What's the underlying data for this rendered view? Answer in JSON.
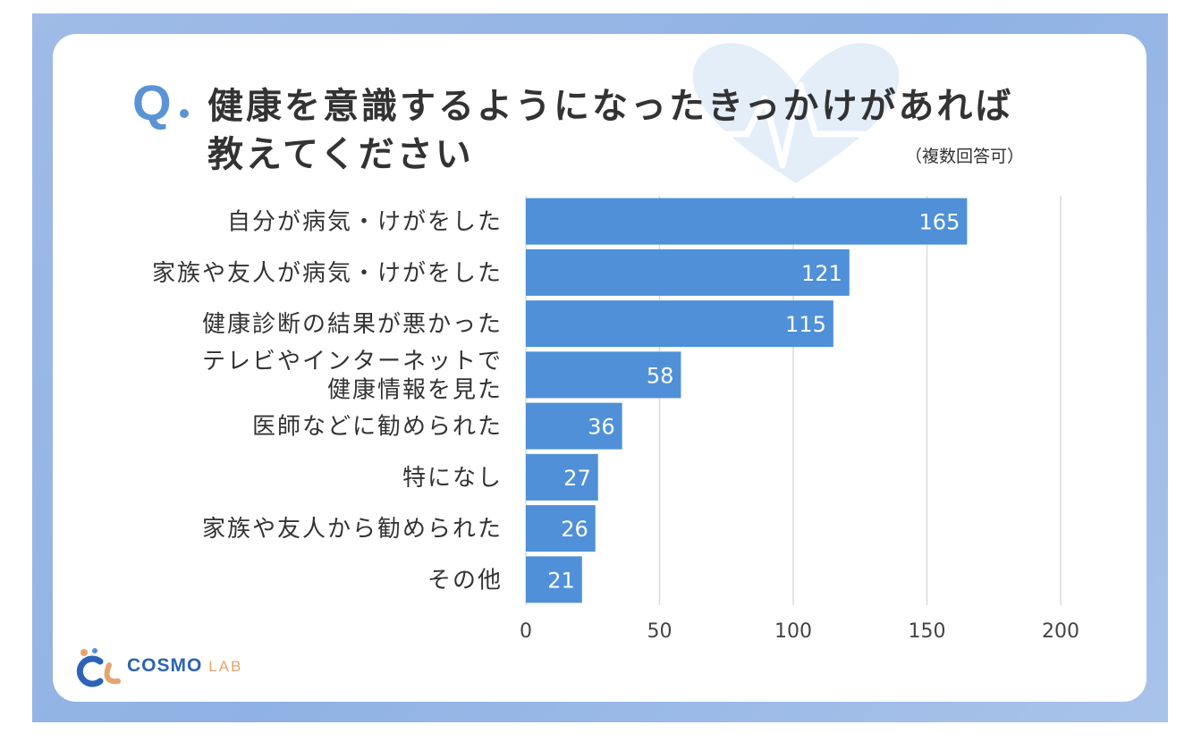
{
  "question": {
    "mark": "Q",
    "title": "健康を意識するようになったきっかけがあれば教えてください",
    "note": "（複数回答可）"
  },
  "chart_data": {
    "type": "bar",
    "orientation": "horizontal",
    "categories": [
      "自分が病気・けがをした",
      "家族や友人が病気・けがをした",
      "健康診断の結果が悪かった",
      "テレビやインターネットで\n健康情報を見た",
      "医師などに勧められた",
      "特になし",
      "家族や友人から勧められた",
      "その他"
    ],
    "values": [
      165,
      121,
      115,
      58,
      36,
      27,
      26,
      21
    ],
    "xlim": [
      0,
      200
    ],
    "xticks": [
      0,
      50,
      100,
      150,
      200
    ],
    "grid": true,
    "bar_color": "#4f90d8"
  },
  "logo": {
    "brand": "COSMO",
    "sub": "LAB"
  },
  "colors": {
    "accent": "#5a93d6",
    "frame": "#9fbbe6"
  }
}
